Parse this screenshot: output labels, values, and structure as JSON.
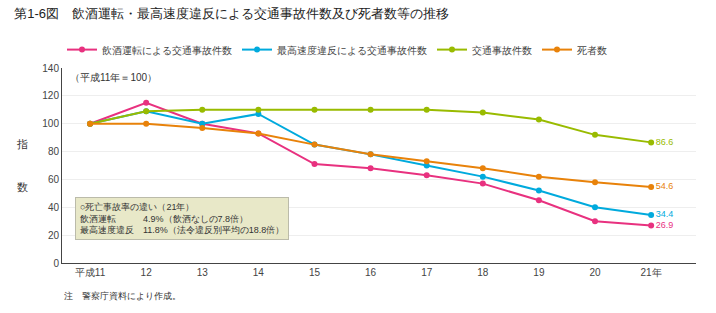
{
  "chart_data": {
    "type": "line",
    "title": "第1-6図　飲酒運転・最高速度違反による交通事故件数及び死者数等の推移",
    "subtitle": "（平成11年＝100）",
    "ylabel": "指\n\n\n数",
    "annotation": "○死亡事故率の違い（21年）\n飲酒運転　　　4.9%（飲酒なしの7.8倍）\n最高速度違反　11.8%（法令違反別平均の18.8倍）",
    "note": "注　警察庁資料により作成。",
    "x": [
      11,
      12,
      13,
      14,
      15,
      16,
      17,
      18,
      19,
      20,
      21
    ],
    "xlim": [
      10.5,
      21.8
    ],
    "xticks": [
      {
        "value": 11,
        "label": "平成11"
      },
      12,
      13,
      14,
      15,
      16,
      17,
      18,
      19,
      20,
      {
        "value": 21,
        "label": "21年"
      }
    ],
    "ylim": [
      0,
      140
    ],
    "yticks": [
      0,
      20,
      40,
      60,
      80,
      100,
      120,
      140
    ],
    "grid": true,
    "legend": "top",
    "marker": "circle",
    "series": [
      {
        "name": "飲酒運転による交通事故件数",
        "color": "#e8317f",
        "values": [
          100,
          115,
          100,
          93,
          71,
          68,
          63,
          57,
          45,
          30,
          26.9
        ],
        "value_labels": [
          null,
          null,
          null,
          null,
          null,
          null,
          null,
          null,
          null,
          null,
          "26.9"
        ]
      },
      {
        "name": "最高速度違反による交通事故件数",
        "color": "#00aadd",
        "values": [
          100,
          109,
          100,
          107,
          85,
          78,
          70,
          62,
          52,
          40,
          34.4
        ],
        "value_labels": [
          null,
          null,
          null,
          null,
          null,
          null,
          null,
          null,
          null,
          null,
          "34.4"
        ]
      },
      {
        "name": "交通事故件数",
        "color": "#99bb00",
        "values": [
          100,
          109,
          110,
          110,
          110,
          110,
          110,
          108,
          103,
          92,
          86.6
        ],
        "value_labels": [
          null,
          null,
          null,
          null,
          null,
          null,
          null,
          null,
          null,
          null,
          "86.6"
        ]
      },
      {
        "name": "死者数",
        "color": "#e8820a",
        "values": [
          100,
          100,
          97,
          93,
          85,
          78,
          73,
          68,
          62,
          58,
          54.6
        ],
        "value_labels": [
          null,
          null,
          null,
          null,
          null,
          null,
          null,
          null,
          null,
          null,
          "54.6"
        ]
      }
    ]
  }
}
